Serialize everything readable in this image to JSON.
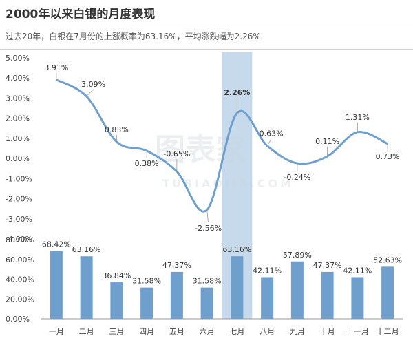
{
  "title": "2000年以来白银的月度表现",
  "subtitle": "过去20年，白银在7月份的上涨概率为63.16%，平均涨跌幅为2.26%",
  "watermark": {
    "text": "图表家",
    "sub": "TUBIAOJIA.COM"
  },
  "colors": {
    "line": "#6fa0cd",
    "bar": "#6fa0cd",
    "highlight_band": "#bcd3e8",
    "highlight_text": "#c0392b"
  },
  "chart_data": [
    {
      "type": "line",
      "categories": [
        "一月",
        "二月",
        "三月",
        "四月",
        "五月",
        "六月",
        "七月",
        "八月",
        "九月",
        "十月",
        "十一月",
        "十二月"
      ],
      "values": [
        3.91,
        3.09,
        0.83,
        0.38,
        -0.65,
        -2.56,
        2.26,
        0.63,
        -0.24,
        0.11,
        1.31,
        0.73
      ],
      "data_labels": [
        "3.91%",
        "3.09%",
        "0.83%",
        "0.38%",
        "-0.65%",
        "-2.56%",
        "2.26%",
        "0.63%",
        "-0.24%",
        "0.11%",
        "1.31%",
        "0.73%"
      ],
      "ylim": [
        -4,
        5
      ],
      "yticks": [
        "5.00%",
        "4.00%",
        "3.00%",
        "2.00%",
        "1.00%",
        "0.00%",
        "-1.00%",
        "-2.00%",
        "-3.00%",
        "-4.00%"
      ],
      "highlight_index": 6,
      "smooth": true
    },
    {
      "type": "bar",
      "categories": [
        "一月",
        "二月",
        "三月",
        "四月",
        "五月",
        "六月",
        "七月",
        "八月",
        "九月",
        "十月",
        "十一月",
        "十二月"
      ],
      "values": [
        68.42,
        63.16,
        36.84,
        31.58,
        47.37,
        31.58,
        63.16,
        42.11,
        57.89,
        47.37,
        42.11,
        52.63
      ],
      "data_labels": [
        "68.42%",
        "63.16%",
        "36.84%",
        "31.58%",
        "47.37%",
        "31.58%",
        "63.16%",
        "42.11%",
        "57.89%",
        "47.37%",
        "42.11%",
        "52.63%"
      ],
      "ylim": [
        0,
        80
      ],
      "yticks": [
        "80.00%",
        "60.00%",
        "40.00%",
        "20.00%",
        "0.00%"
      ],
      "highlight_index": 6
    }
  ]
}
